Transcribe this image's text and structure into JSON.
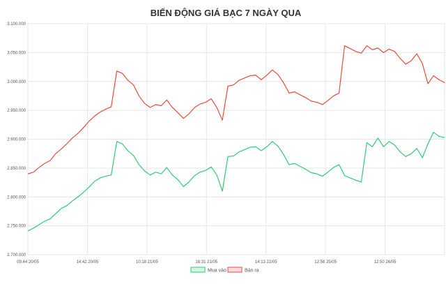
{
  "chart_data": {
    "type": "line",
    "title": "BIẾN ĐỘNG GIÁ BẠC 7 NGÀY QUA",
    "xlabel": "",
    "ylabel": "",
    "ylim": [
      2700000,
      3100000
    ],
    "y_ticks": [
      {
        "value": 3100000,
        "label": "3.100.000"
      },
      {
        "value": 3050000,
        "label": "3.050.000"
      },
      {
        "value": 3000000,
        "label": "3.000.000"
      },
      {
        "value": 2950000,
        "label": "2.950.000"
      },
      {
        "value": 2900000,
        "label": "2.900.000"
      },
      {
        "value": 2850000,
        "label": "2.850.000"
      },
      {
        "value": 2800000,
        "label": "2.800.000"
      },
      {
        "value": 2750000,
        "label": "2.750.000"
      },
      {
        "value": 2700000,
        "label": "2.700.000"
      }
    ],
    "x_ticks": [
      "09:44 20/05",
      "14:42 20/05",
      "10:18 21/05",
      "16:31 21/05",
      "14:13 22/05",
      "12:56 25/05",
      "12:50 26/05"
    ],
    "grid": true,
    "legend_position": "bottom",
    "series": [
      {
        "name": "Mua vào",
        "color": "#2ecc71",
        "fill": "#d5f5e3",
        "values": [
          2741000,
          2746000,
          2752000,
          2758000,
          2762000,
          2771000,
          2780000,
          2785000,
          2793000,
          2800000,
          2808000,
          2817000,
          2827000,
          2833000,
          2836000,
          2838000,
          2896000,
          2892000,
          2880000,
          2872000,
          2856000,
          2845000,
          2838000,
          2843000,
          2840000,
          2851000,
          2838000,
          2830000,
          2818000,
          2826000,
          2837000,
          2843000,
          2846000,
          2852000,
          2838000,
          2810000,
          2870000,
          2871000,
          2878000,
          2882000,
          2886000,
          2887000,
          2880000,
          2887000,
          2896000,
          2888000,
          2874000,
          2856000,
          2858000,
          2853000,
          2848000,
          2842000,
          2840000,
          2836000,
          2843000,
          2851000,
          2856000,
          2837000,
          2833000,
          2829000,
          2826000,
          2894000,
          2887000,
          2902000,
          2887000,
          2896000,
          2890000,
          2878000,
          2870000,
          2875000,
          2884000,
          2868000,
          2892000,
          2912000,
          2905000,
          2903000
        ]
      },
      {
        "name": "Bán ra",
        "color": "#e74c3c",
        "fill": "#fadbd8",
        "values": [
          2840000,
          2843000,
          2851000,
          2858000,
          2863000,
          2875000,
          2883000,
          2892000,
          2902000,
          2910000,
          2920000,
          2931000,
          2940000,
          2947000,
          2952000,
          2956000,
          3018000,
          3014000,
          3002000,
          2994000,
          2975000,
          2962000,
          2955000,
          2960000,
          2958000,
          2968000,
          2955000,
          2946000,
          2936000,
          2944000,
          2955000,
          2961000,
          2964000,
          2970000,
          2955000,
          2933000,
          2992000,
          2994000,
          3002000,
          3006000,
          3010000,
          3011000,
          3003000,
          3011000,
          3020000,
          3012000,
          2998000,
          2980000,
          2982000,
          2977000,
          2972000,
          2966000,
          2964000,
          2960000,
          2967000,
          2975000,
          2980000,
          3062000,
          3057000,
          3052000,
          3049000,
          3062000,
          3055000,
          3058000,
          3050000,
          3056000,
          3052000,
          3040000,
          3030000,
          3036000,
          3048000,
          3031000,
          2996000,
          3010000,
          3003000,
          2998000
        ]
      }
    ]
  }
}
